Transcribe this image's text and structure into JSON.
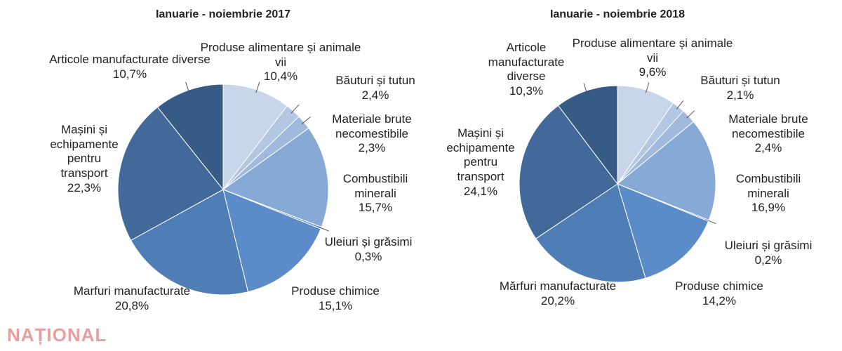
{
  "chart_data": [
    {
      "type": "pie",
      "title": "Ianuarie - noiembrie 2017",
      "categories": [
        "Produse alimentare și animale vii",
        "Băuturi și tutun",
        "Materiale brute necomestibile",
        "Combustibili minerali",
        "Uleiuri și grăsimi",
        "Produse chimice",
        "Marfuri manufacturate",
        "Mașini și echipamente pentru transport",
        "Articole manufacturate diverse"
      ],
      "values": [
        10.4,
        2.4,
        2.3,
        15.7,
        0.3,
        15.1,
        20.8,
        22.3,
        10.7
      ],
      "value_labels": [
        "10,4%",
        "2,4%",
        "2,3%",
        "15,7%",
        "0,3%",
        "15,1%",
        "20,8%",
        "22,3%",
        "10,7%"
      ],
      "colors": [
        "#c8d6ea",
        "#b3c6e2",
        "#a0b9dc",
        "#86a9d6",
        "#6c98cf",
        "#5b8cc9",
        "#4f7eb6",
        "#43699a",
        "#365c86"
      ]
    },
    {
      "type": "pie",
      "title": "Ianuarie - noiembrie 2018",
      "categories": [
        "Produse alimentare și animale vii",
        "Băuturi și tutun",
        "Materiale brute necomestibile",
        "Combustibili minerali",
        "Uleiuri și grăsimi",
        "Produse chimice",
        "Mărfuri manufacturate",
        "Mașini și echipamente pentru transport",
        "Articole manufacturate diverse"
      ],
      "values": [
        9.6,
        2.1,
        2.4,
        16.9,
        0.2,
        14.2,
        20.2,
        24.1,
        10.3
      ],
      "value_labels": [
        "9,6%",
        "2,1%",
        "2,4%",
        "16,9%",
        "0,2%",
        "14,2%",
        "20,2%",
        "24,1%",
        "10,3%"
      ],
      "colors": [
        "#c8d6ea",
        "#b3c6e2",
        "#a0b9dc",
        "#86a9d6",
        "#6c98cf",
        "#5b8cc9",
        "#4f7eb6",
        "#43699a",
        "#365c86"
      ]
    }
  ],
  "watermark": "NAȚIONAL"
}
